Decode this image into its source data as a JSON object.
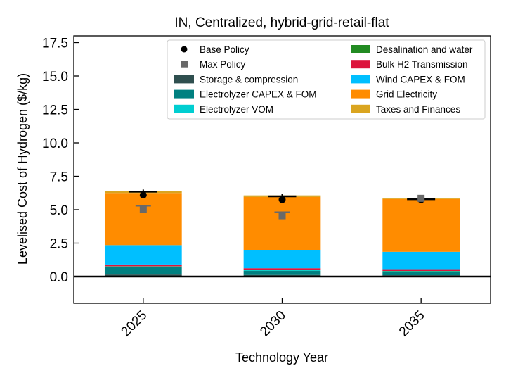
{
  "chart_data": {
    "type": "bar",
    "stacked": true,
    "title": "IN, Centralized, hybrid-grid-retail-flat",
    "xlabel": "Technology Year",
    "ylabel": "Levelised Cost of Hydrogen ($/kg)",
    "ylim": [
      -2.0,
      18.0
    ],
    "yticks": [
      0.0,
      2.5,
      5.0,
      7.5,
      10.0,
      12.5,
      15.0,
      17.5
    ],
    "ytick_labels": [
      "0.0",
      "2.5",
      "5.0",
      "7.5",
      "10.0",
      "12.5",
      "15.0",
      "17.5"
    ],
    "categories": [
      "2025",
      "2030",
      "2035"
    ],
    "grid": false,
    "legend_position": "top-right",
    "series": [
      {
        "name": "Storage & compression",
        "color": "#2f4f4f",
        "values": [
          0.15,
          0.12,
          0.1
        ]
      },
      {
        "name": "Electrolyzer CAPEX & FOM",
        "color": "#008080",
        "values": [
          0.55,
          0.3,
          0.25
        ]
      },
      {
        "name": "Electrolyzer VOM",
        "color": "#00ced1",
        "values": [
          0.05,
          0.05,
          0.05
        ]
      },
      {
        "name": "Desalination and water",
        "color": "#228b22",
        "values": [
          0.02,
          0.02,
          0.02
        ]
      },
      {
        "name": "Bulk H2 Transmission",
        "color": "#dc143c",
        "values": [
          0.13,
          0.13,
          0.13
        ]
      },
      {
        "name": "Wind CAPEX & FOM",
        "color": "#00bfff",
        "values": [
          1.45,
          1.38,
          1.3
        ]
      },
      {
        "name": "Grid Electricity",
        "color": "#ff8c00",
        "values": [
          3.9,
          3.95,
          3.95
        ]
      },
      {
        "name": "Taxes and Finances",
        "color": "#daa520",
        "values": [
          0.15,
          0.12,
          0.08
        ]
      }
    ],
    "markers": [
      {
        "name": "Base Policy",
        "color": "#000000",
        "shape": "circle",
        "values": [
          6.1,
          5.75,
          5.75
        ]
      },
      {
        "name": "Max Policy",
        "color": "#696969",
        "shape": "square",
        "values": [
          5.05,
          4.55,
          5.85
        ]
      }
    ],
    "error_bars": [
      {
        "category": "2025",
        "base_center": 6.35,
        "max_top": 5.3,
        "max_bottom": 4.9
      },
      {
        "category": "2030",
        "base_center": 6.0,
        "max_top": 4.8,
        "max_bottom": 4.45
      },
      {
        "category": "2035",
        "base_center": 5.78,
        "max_top": null,
        "max_bottom": null
      }
    ],
    "legend_order": [
      "Base Policy",
      "Max Policy",
      "Storage & compression",
      "Electrolyzer CAPEX & FOM",
      "Electrolyzer VOM",
      "Desalination and water",
      "Bulk H2 Transmission",
      "Wind CAPEX & FOM",
      "Grid Electricity",
      "Taxes and Finances"
    ]
  }
}
